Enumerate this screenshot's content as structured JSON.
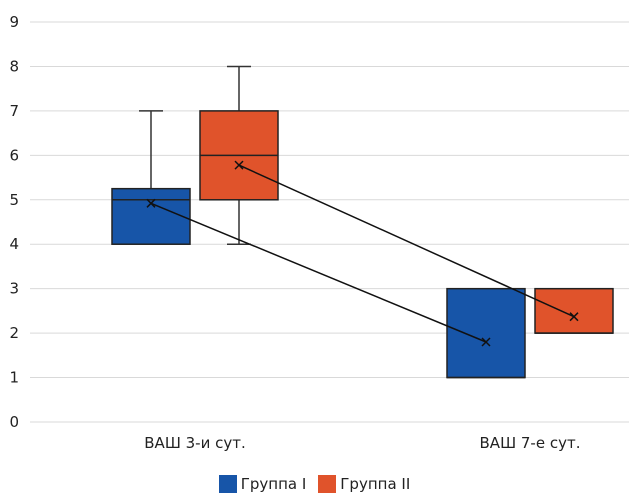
{
  "chart_data": {
    "type": "boxplot",
    "categories": [
      "ВАШ 3-и сут.",
      "ВАШ 7-е сут."
    ],
    "ylim": [
      0,
      9
    ],
    "y_ticks": [
      0,
      1,
      2,
      3,
      4,
      5,
      6,
      7,
      8,
      9
    ],
    "grid": true,
    "legend_position": "bottom",
    "series": [
      {
        "name": "Группа I",
        "color": "#1755a8",
        "boxes": [
          {
            "whisker_low": 4,
            "q1": 4,
            "median": 5,
            "q3": 5.25,
            "whisker_high": 7,
            "mean": 4.92
          },
          {
            "whisker_low": 1,
            "q1": 1,
            "median": 1,
            "q3": 3,
            "whisker_high": 3,
            "mean": 1.8
          }
        ]
      },
      {
        "name": "Группа II",
        "color": "#e0532b",
        "boxes": [
          {
            "whisker_low": 4,
            "q1": 5,
            "median": 6,
            "q3": 7,
            "whisker_high": 8,
            "mean": 5.78
          },
          {
            "whisker_low": 2,
            "q1": 2,
            "median": 2,
            "q3": 3,
            "whisker_high": 3,
            "mean": 2.37
          }
        ]
      }
    ]
  }
}
